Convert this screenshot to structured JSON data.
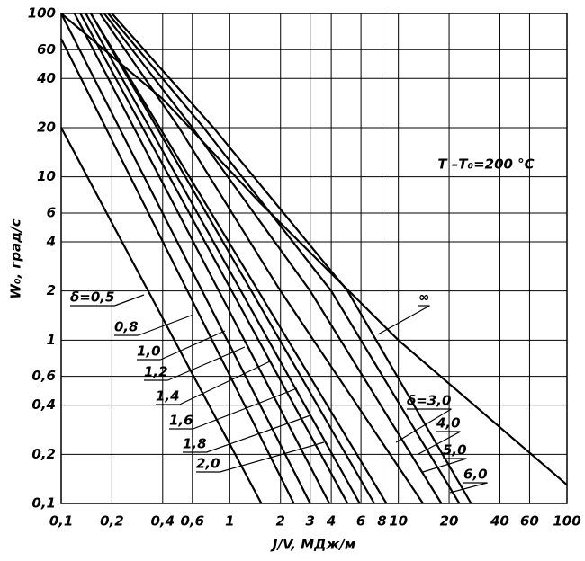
{
  "chart_data": {
    "type": "line",
    "log_x": true,
    "log_y": true,
    "grid": true,
    "annotation": "T –T₀=200 °C",
    "x_label": "J/V, МДж/м",
    "y_label": "W₀, град/с",
    "xlim": [
      0.1,
      100
    ],
    "ylim": [
      0.1,
      100
    ],
    "xticks": [
      {
        "value": 0.1,
        "label": "0,1"
      },
      {
        "value": 0.2,
        "label": "0,2"
      },
      {
        "value": 0.4,
        "label": "0,4"
      },
      {
        "value": 0.6,
        "label": "0,6"
      },
      1,
      2,
      3,
      4,
      6,
      8,
      10,
      20,
      40,
      60,
      100
    ],
    "yticks": [
      {
        "value": 0.1,
        "label": "0,1"
      },
      {
        "value": 0.2,
        "label": "0,2"
      },
      {
        "value": 0.4,
        "label": "0,4"
      },
      {
        "value": 0.6,
        "label": "0,6"
      },
      1,
      2,
      4,
      6,
      10,
      20,
      40,
      60,
      100
    ],
    "series": [
      {
        "name": "δ=0,5",
        "color": "#000",
        "x": [
          0.1,
          1.54
        ],
        "values": [
          20,
          0.1
        ]
      },
      {
        "name": "0,8",
        "color": "#000",
        "x": [
          0.1,
          2.4
        ],
        "values": [
          70,
          0.1
        ]
      },
      {
        "name": "1,0",
        "color": "#000",
        "x": [
          0.1,
          3.0
        ],
        "values": [
          100,
          0.1
        ]
      },
      {
        "name": "1,2",
        "color": "#000",
        "x": [
          0.12,
          3.9
        ],
        "values": [
          100,
          0.1
        ]
      },
      {
        "name": "1,4",
        "color": "#000",
        "x": [
          0.13,
          5.0
        ],
        "values": [
          100,
          0.1
        ]
      },
      {
        "name": "1,6",
        "color": "#000",
        "x": [
          0.14,
          5.9
        ],
        "values": [
          100,
          0.1
        ]
      },
      {
        "name": "1,8",
        "color": "#000",
        "x": [
          0.15,
          7.2
        ],
        "values": [
          100,
          0.1
        ]
      },
      {
        "name": "2,0",
        "color": "#000",
        "x": [
          0.15,
          8.5
        ],
        "values": [
          100,
          0.1
        ]
      },
      {
        "name": "δ=3,0",
        "color": "#000",
        "x": [
          0.17,
          0.5,
          2,
          14
        ],
        "values": [
          100,
          20,
          2,
          0.1
        ]
      },
      {
        "name": "4,0",
        "color": "#000",
        "x": [
          0.18,
          0.6,
          3,
          18
        ],
        "values": [
          100,
          20,
          2,
          0.1
        ]
      },
      {
        "name": "5,0",
        "color": "#000",
        "x": [
          0.19,
          0.7,
          4,
          23
        ],
        "values": [
          100,
          20,
          2,
          0.1
        ]
      },
      {
        "name": "6,0",
        "color": "#000",
        "x": [
          0.2,
          0.8,
          5,
          27
        ],
        "values": [
          100,
          20,
          2,
          0.1
        ]
      },
      {
        "name": "∞",
        "color": "#000",
        "x": [
          0.1,
          0.4,
          1.5,
          10,
          100
        ],
        "values": [
          100,
          30,
          7,
          1,
          0.13
        ]
      }
    ]
  }
}
